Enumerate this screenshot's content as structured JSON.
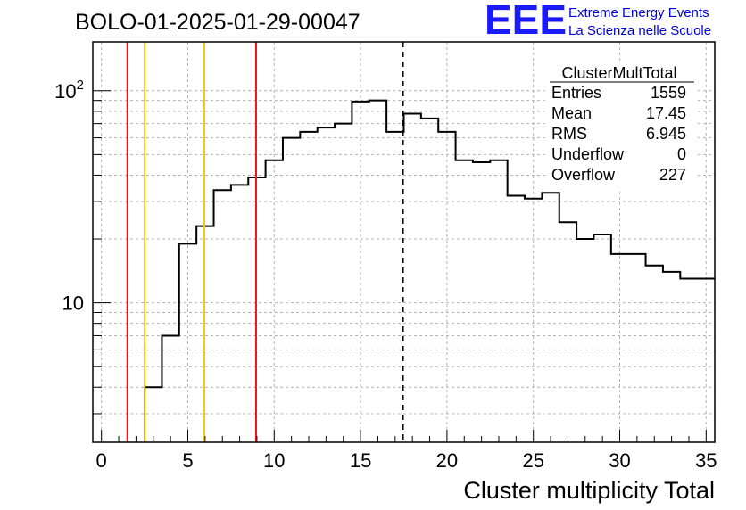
{
  "chart_data": {
    "type": "bar",
    "title": "BOLO-01-2025-01-29-00047",
    "xlabel": "Cluster multiplicity Total",
    "ylabel": "",
    "y_scale": "log",
    "xlim": [
      -0.5,
      35.5
    ],
    "ylim": [
      2.2,
      170
    ],
    "grid": true,
    "x_ticks": [
      0,
      5,
      10,
      15,
      20,
      25,
      30,
      35
    ],
    "y_ticks": [
      {
        "value": 10,
        "base": "10",
        "exp": ""
      },
      {
        "value": 100,
        "base": "10",
        "exp": "2"
      }
    ],
    "bin_width": 1,
    "bin_start": 2.5,
    "values": [
      4,
      7,
      19,
      23,
      34,
      36,
      39,
      47,
      60,
      64,
      67,
      70,
      89,
      90,
      64,
      78,
      74,
      64,
      47,
      46,
      47,
      32,
      31,
      33,
      24,
      20,
      21,
      17,
      17,
      15,
      14,
      13,
      13
    ],
    "vertical_lines": [
      {
        "x": 1.5,
        "color": "#e8141e",
        "style": "solid"
      },
      {
        "x": 2.5,
        "color": "#f0c800",
        "style": "solid"
      },
      {
        "x": 5.95,
        "color": "#f0c800",
        "style": "solid"
      },
      {
        "x": 8.95,
        "color": "#e8141e",
        "style": "solid"
      },
      {
        "x": 17.45,
        "color": "#000000",
        "style": "dashed"
      }
    ],
    "stats_box": {
      "name": "ClusterMultTotal",
      "rows": [
        {
          "label": "Entries",
          "value": "1559"
        },
        {
          "label": "Mean",
          "value": "17.45"
        },
        {
          "label": "RMS",
          "value": "6.945"
        },
        {
          "label": "Underflow",
          "value": "0"
        },
        {
          "label": "Overflow",
          "value": "227"
        }
      ]
    }
  },
  "logo": {
    "big": "EEE",
    "line1": "Extreme Energy Events",
    "line2": "La Scienza nelle Scuole",
    "color": "#1a1aff"
  }
}
